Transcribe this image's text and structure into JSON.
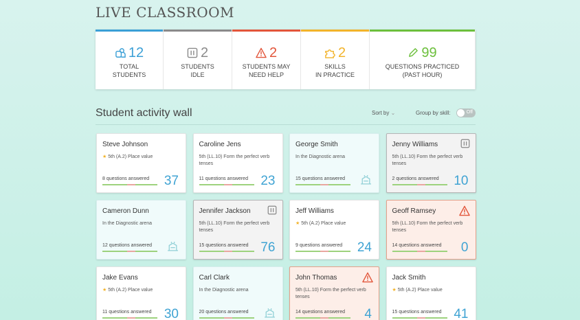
{
  "header": {
    "title": "LIVE CLASSROOM"
  },
  "stats": [
    {
      "value": "12",
      "label": [
        "TOTAL",
        "STUDENTS"
      ],
      "color": "#3a9fd6",
      "icon": "students"
    },
    {
      "value": "2",
      "label": [
        "STUDENTS",
        "IDLE"
      ],
      "color": "#8a8a8a",
      "icon": "pause"
    },
    {
      "value": "2",
      "label": [
        "STUDENTS MAY",
        "NEED HELP"
      ],
      "color": "#e2553a",
      "icon": "warn"
    },
    {
      "value": "2",
      "label": [
        "SKILLS",
        "IN PRACTICE"
      ],
      "color": "#f2b32a",
      "icon": "puzzle"
    },
    {
      "value": "99",
      "label": [
        "QUESTIONS PRACTICED",
        "(PAST HOUR)"
      ],
      "color": "#6cbf3c",
      "icon": "pencil"
    }
  ],
  "wall": {
    "title": "Student activity wall",
    "sort_label": "Sort by",
    "group_label": "Group by skill:",
    "toggle": "Off"
  },
  "cards": [
    {
      "name": "Steve Johnson",
      "skill": "5th (A.2) Place value",
      "answered": "8 questions answered",
      "score": "37",
      "state": "normal",
      "star": true
    },
    {
      "name": "Caroline Jens",
      "skill": "5th (LL.10) Form the perfect verb tenses",
      "answered": "11 questions answered",
      "score": "23",
      "state": "normal",
      "star": false
    },
    {
      "name": "George Smith",
      "skill": "In the Diagnostic arena",
      "answered": "15 questions answered",
      "state": "diagnostic",
      "star": false
    },
    {
      "name": "Jenny Williams",
      "skill": "5th (LL.10) Form the perfect verb tenses",
      "answered": "2 questions answered",
      "score": "10",
      "state": "idle",
      "star": false
    },
    {
      "name": "Cameron Dunn",
      "skill": "In the Diagnostic arena",
      "answered": "12 questions answered",
      "state": "diagnostic",
      "star": false
    },
    {
      "name": "Jennifer Jackson",
      "skill": "5th (LL.10) Form the perfect verb tenses",
      "answered": "15 questions answered",
      "score": "76",
      "state": "idle",
      "star": false
    },
    {
      "name": "Jeff Williams",
      "skill": "5th (A.2) Place value",
      "answered": "9 questions answered",
      "score": "24",
      "state": "normal",
      "star": true
    },
    {
      "name": "Geoff Ramsey",
      "skill": "5th (LL.10) Form the perfect verb tenses",
      "answered": "14 questions answered",
      "score": "0",
      "state": "help",
      "star": false
    },
    {
      "name": "Jake Evans",
      "skill": "5th (A.2) Place value",
      "answered": "11 questions answered",
      "score": "30",
      "state": "normal",
      "star": true
    },
    {
      "name": "Carl Clark",
      "skill": "In the Diagnostic arena",
      "answered": "20 questions answered",
      "state": "diagnostic",
      "star": false
    },
    {
      "name": "John Thomas",
      "skill": "5th (LL.10) Form the perfect verb tenses",
      "answered": "14 questions answered",
      "score": "4",
      "state": "help",
      "star": false
    },
    {
      "name": "Jack Smith",
      "skill": "5th (A.2) Place value",
      "answered": "15 questions answered",
      "score": "41",
      "state": "normal",
      "star": true
    }
  ]
}
